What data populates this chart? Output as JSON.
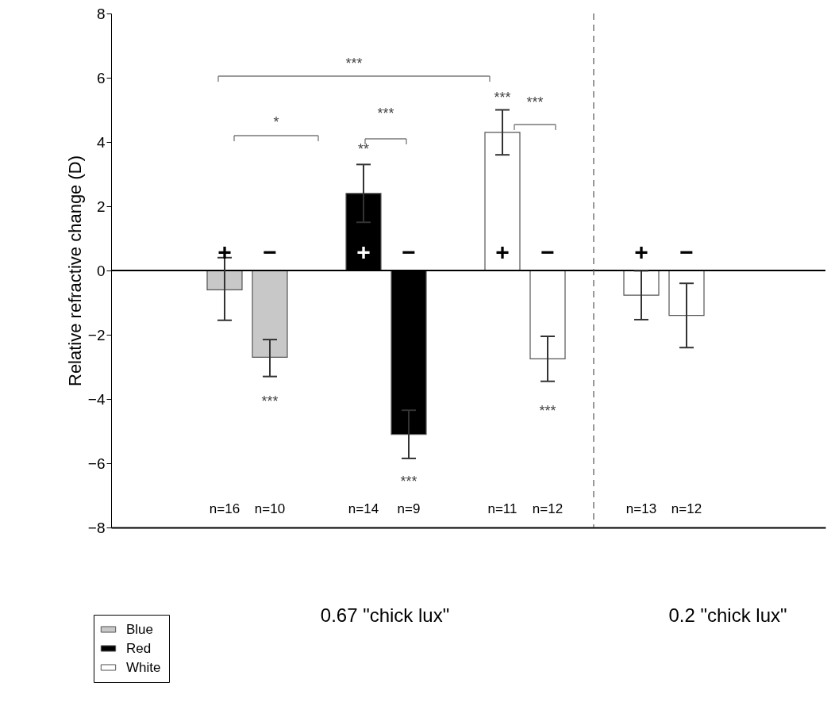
{
  "chart_data": {
    "type": "bar",
    "ylabel": "Relative refractive change (D)",
    "categories": [
      "n=16",
      "n=10",
      "n=14",
      "n=9",
      "n=11",
      "n=12",
      "n=13",
      "n=12"
    ],
    "series": [
      {
        "name": "Blue",
        "color": "#c8c8c8",
        "values": [
          -0.6,
          -2.7,
          null,
          null,
          null,
          null,
          null,
          null
        ],
        "errors": [
          [
            -1.55,
            0.4
          ],
          [
            -3.3,
            -2.15
          ],
          null,
          null,
          null,
          null,
          null,
          null
        ],
        "value_labels": [
          "+",
          "−",
          null,
          null,
          null,
          null,
          null,
          null
        ]
      },
      {
        "name": "Red",
        "color": "#000000",
        "values": [
          null,
          null,
          2.4,
          -5.1,
          null,
          null,
          null,
          null
        ],
        "errors": [
          null,
          null,
          0.9,
          0.75,
          null,
          null,
          null,
          null
        ],
        "value_labels": [
          null,
          null,
          "+",
          "−",
          null,
          null,
          null,
          null
        ]
      },
      {
        "name": "White",
        "color": "#ffffff",
        "values": [
          null,
          null,
          null,
          null,
          4.3,
          -2.75,
          -0.77,
          -1.4
        ],
        "errors": [
          null,
          null,
          null,
          null,
          0.7,
          0.7,
          0.76,
          1.0
        ],
        "value_labels": [
          null,
          null,
          null,
          null,
          "+",
          "−",
          "+",
          "−"
        ]
      }
    ],
    "ylim": [
      -8,
      8
    ],
    "yticks": [
      -8,
      -6,
      -4,
      -2,
      0,
      2,
      4,
      6,
      8
    ],
    "ref_lines": [
      {
        "axis": "y",
        "value": 0,
        "line_style": "solid"
      }
    ],
    "annotations": [
      "***",
      "**",
      "***",
      "***",
      "***",
      "*",
      "***",
      "***",
      "***",
      "0.67 \"chick lux\"",
      "0.2 \"chick lux\""
    ],
    "legend": "bottom left",
    "tick_labels": "y"
  }
}
